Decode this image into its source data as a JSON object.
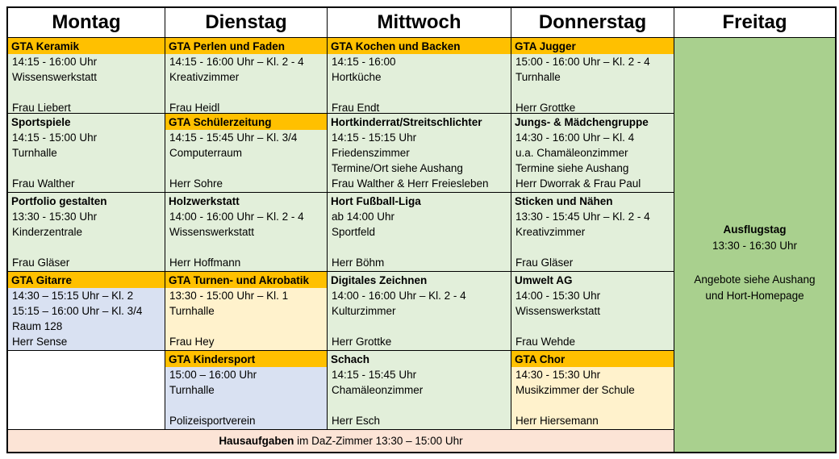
{
  "header": {
    "day_labels": [
      "Montag",
      "Dienstag",
      "Mittwoch",
      "Donnerstag",
      "Freitag"
    ]
  },
  "days": [
    {
      "label": "Montag",
      "cells": [
        {
          "bg": "green",
          "highlight": true,
          "title": "GTA Keramik",
          "lines": [
            "14:15 - 16:00 Uhr",
            "Wissenswerkstatt",
            "",
            "Frau Liebert"
          ]
        },
        {
          "bg": "green",
          "highlight": false,
          "title": "Sportspiele",
          "lines": [
            "14:15 - 15:00 Uhr",
            "Turnhalle",
            "",
            "Frau Walther"
          ]
        },
        {
          "bg": "green",
          "highlight": false,
          "title": "Portfolio gestalten",
          "lines": [
            "13:30 - 15:30 Uhr",
            "Kinderzentrale",
            "",
            "Frau Gläser"
          ]
        },
        {
          "bg": "blue",
          "highlight": true,
          "title": "GTA Gitarre",
          "lines": [
            "14:30 – 15:15 Uhr – Kl. 2",
            "15:15 – 16:00 Uhr – Kl. 3/4",
            "Raum 128",
            "Herr Sense"
          ]
        },
        {
          "bg": "white",
          "highlight": false,
          "title": "",
          "lines": [
            "",
            "",
            "",
            ""
          ]
        }
      ]
    },
    {
      "label": "Dienstag",
      "cells": [
        {
          "bg": "green",
          "highlight": true,
          "title": "GTA Perlen und Faden",
          "lines": [
            "14:15 - 16:00 Uhr – Kl. 2 - 4",
            "Kreativzimmer",
            "",
            "Frau Heidl"
          ]
        },
        {
          "bg": "green",
          "highlight": true,
          "title": "GTA Schülerzeitung",
          "lines": [
            "14:15 - 15:45 Uhr – Kl. 3/4",
            "Computerraum",
            "",
            "Herr Sohre"
          ]
        },
        {
          "bg": "green",
          "highlight": false,
          "title": "Holzwerkstatt",
          "lines": [
            "14:00 - 16:00 Uhr – Kl. 2 - 4",
            "Wissenswerkstatt",
            "",
            "Herr Hoffmann"
          ]
        },
        {
          "bg": "yellow",
          "highlight": true,
          "title": "GTA Turnen- und Akrobatik",
          "lines": [
            "13:30 - 15:00 Uhr – Kl. 1",
            "Turnhalle",
            "",
            "Frau Hey"
          ]
        },
        {
          "bg": "blue",
          "highlight": true,
          "title": "GTA Kindersport",
          "lines": [
            "15:00 – 16:00 Uhr",
            "Turnhalle",
            "",
            "Polizeisportverein"
          ]
        }
      ]
    },
    {
      "label": "Mittwoch",
      "cells": [
        {
          "bg": "green",
          "highlight": true,
          "title": "GTA Kochen und Backen",
          "lines": [
            "14:15 - 16:00",
            "Hortküche",
            "",
            "Frau Endt"
          ]
        },
        {
          "bg": "green",
          "highlight": false,
          "title": "Hortkinderrat/Streitschlichter",
          "lines": [
            "14:15 - 15:15 Uhr",
            "Friedenszimmer",
            "Termine/Ort siehe Aushang",
            "Frau Walther & Herr Freiesleben"
          ]
        },
        {
          "bg": "green",
          "highlight": false,
          "title": "Hort Fußball-Liga",
          "lines": [
            "ab 14:00 Uhr",
            "Sportfeld",
            "",
            "Herr Böhm"
          ]
        },
        {
          "bg": "green",
          "highlight": false,
          "title": "Digitales Zeichnen",
          "lines": [
            "14:00 - 16:00 Uhr – Kl. 2 - 4",
            "Kulturzimmer",
            "",
            "Herr Grottke"
          ]
        },
        {
          "bg": "green",
          "highlight": false,
          "title": "Schach",
          "lines": [
            "14:15 - 15:45 Uhr",
            "Chamäleonzimmer",
            "",
            "Herr Esch"
          ]
        }
      ]
    },
    {
      "label": "Donnerstag",
      "cells": [
        {
          "bg": "green",
          "highlight": true,
          "title": "GTA Jugger",
          "lines": [
            "15:00 - 16:00 Uhr – Kl. 2 - 4",
            "Turnhalle",
            "",
            "Herr Grottke"
          ]
        },
        {
          "bg": "green",
          "highlight": false,
          "title": "Jungs- & Mädchengruppe",
          "lines": [
            "14:30 - 16:00 Uhr – Kl. 4",
            "u.a. Chamäleonzimmer",
            "Termine siehe Aushang",
            "Herr Dworrak & Frau Paul"
          ]
        },
        {
          "bg": "green",
          "highlight": false,
          "title": "Sticken und Nähen",
          "lines": [
            "13:30 - 15:45 Uhr – Kl. 2 - 4",
            "Kreativzimmer",
            "",
            "Frau Gläser"
          ]
        },
        {
          "bg": "green",
          "highlight": false,
          "title": "Umwelt AG",
          "lines": [
            "14:00 - 15:30 Uhr",
            "Wissenswerkstatt",
            "",
            "Frau Wehde"
          ]
        },
        {
          "bg": "yellow",
          "highlight": true,
          "title": "GTA Chor",
          "lines": [
            "14:30 - 15:30 Uhr",
            "Musikzimmer der Schule",
            "",
            "Herr Hiersemann"
          ]
        }
      ]
    }
  ],
  "friday": {
    "label": "Freitag",
    "lines": [
      {
        "text": "Ausflugstag",
        "bold": true
      },
      {
        "text": "13:30 - 16:30 Uhr",
        "bold": false
      },
      {
        "text": "",
        "bold": false
      },
      {
        "text": "Angebote siehe Aushang",
        "bold": false
      },
      {
        "text": "und Hort-Homepage",
        "bold": false
      }
    ]
  },
  "footer": {
    "bold": "Hausaufgaben",
    "rest": " im DaZ-Zimmer 13:30 – 15:00 Uhr"
  },
  "colors": {
    "highlight": "#FFC000",
    "cell_green": "#E2EFDA",
    "cell_blue": "#D9E1F2",
    "cell_yellow": "#FFF2CC",
    "friday_green": "#A9D08E",
    "footer_pink": "#FCE4D6",
    "border": "#000000"
  }
}
